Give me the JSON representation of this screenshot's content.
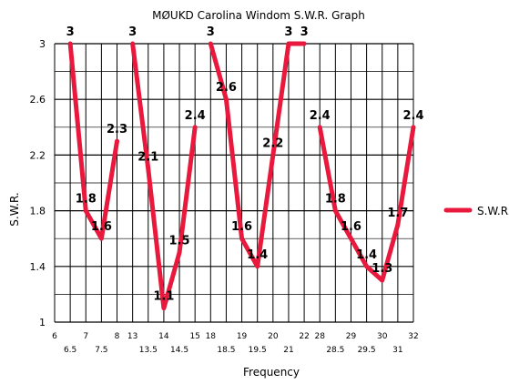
{
  "chart_data": {
    "type": "line",
    "title": "MØUKD Carolina Windom S.W.R. Graph",
    "xlabel": "Frequency",
    "ylabel": "S.W.R.",
    "ylim": [
      1,
      3
    ],
    "yticks": [
      "1",
      "1.4",
      "1.8",
      "2.2",
      "2.6",
      "3"
    ],
    "grid": true,
    "legend": "right",
    "color": "#e8193c",
    "series": [
      {
        "name": "S.W.R.",
        "segments": [
          {
            "x": [
              "6.5",
              "7",
              "7.5",
              "8"
            ],
            "values": [
              3,
              1.8,
              1.6,
              2.3
            ],
            "labels": [
              "3",
              "1.8",
              "1.6",
              "2.3"
            ]
          },
          {
            "x": [
              "13",
              "13.5",
              "14",
              "14.5",
              "15"
            ],
            "values": [
              3,
              2.1,
              1.1,
              1.5,
              2.4
            ],
            "labels": [
              "3",
              "2.1",
              "1.1",
              "1.5",
              "2.4"
            ]
          },
          {
            "x": [
              "18",
              "18.5",
              "19",
              "19.5",
              "20",
              "21",
              "22"
            ],
            "values": [
              3,
              2.6,
              1.6,
              1.4,
              2.2,
              3,
              3
            ],
            "labels": [
              "3",
              "2.6",
              "1.6",
              "1.4",
              "2.2",
              "3",
              "3"
            ]
          },
          {
            "x": [
              "28",
              "28.5",
              "29",
              "29.5",
              "30",
              "31",
              "32"
            ],
            "values": [
              2.4,
              1.8,
              1.6,
              1.4,
              1.3,
              1.7,
              2.4
            ],
            "labels": [
              "2.4",
              "1.8",
              "1.6",
              "1.4",
              "1.3",
              "1.7",
              "2.4"
            ]
          }
        ]
      }
    ],
    "xticks": [
      {
        "label": "6",
        "row": 1
      },
      {
        "label": "6.5",
        "row": 2
      },
      {
        "label": "7",
        "row": 1
      },
      {
        "label": "7.5",
        "row": 2
      },
      {
        "label": "8",
        "row": 1
      },
      {
        "label": "13",
        "row": 1
      },
      {
        "label": "13.5",
        "row": 2
      },
      {
        "label": "14",
        "row": 1
      },
      {
        "label": "14.5",
        "row": 2
      },
      {
        "label": "15",
        "row": 1
      },
      {
        "label": "18",
        "row": 1
      },
      {
        "label": "18.5",
        "row": 2
      },
      {
        "label": "19",
        "row": 1
      },
      {
        "label": "19.5",
        "row": 2
      },
      {
        "label": "20",
        "row": 1
      },
      {
        "label": "21",
        "row": 2
      },
      {
        "label": "22",
        "row": 1
      },
      {
        "label": "28",
        "row": 1
      },
      {
        "label": "28.5",
        "row": 2
      },
      {
        "label": "29",
        "row": 1
      },
      {
        "label": "29.5",
        "row": 2
      },
      {
        "label": "30",
        "row": 1
      },
      {
        "label": "31",
        "row": 2
      },
      {
        "label": "32",
        "row": 1
      }
    ]
  }
}
